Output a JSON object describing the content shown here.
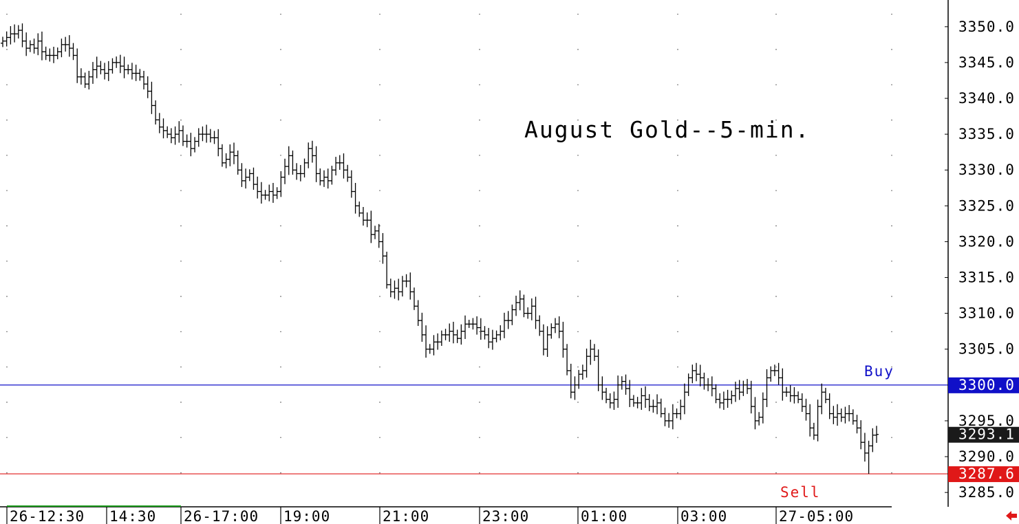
{
  "chart_data": {
    "type": "ohlc",
    "title": "August Gold--5-min.",
    "ylim": [
      3281.6,
      3352.0
    ],
    "y_ticks": [
      "3350.0",
      "3345.0",
      "3340.0",
      "3335.0",
      "3330.0",
      "3325.0",
      "3320.0",
      "3315.0",
      "3310.0",
      "3305.0",
      "3295.0",
      "3290.0",
      "3285.0"
    ],
    "x_tick_labels": [
      "26-12:30",
      "14:30",
      "26-17:00",
      "19:00",
      "21:00",
      "23:00",
      "01:00",
      "03:00",
      "27-05:00"
    ],
    "grid": "dotted vertical",
    "levels": [
      {
        "label": "Buy",
        "badge": "3300.0",
        "value": 3300.0,
        "color": "#1010c8"
      },
      {
        "label": "Sell",
        "badge": "3287.6",
        "value": 3287.6,
        "color": "#e01818"
      }
    ],
    "last_price": {
      "badge": "3293.1",
      "value": 3293.1
    },
    "bars_close": [
      3348,
      3348.5,
      3349,
      3349,
      3349.5,
      3348,
      3347,
      3347.5,
      3347,
      3348,
      3346.5,
      3346,
      3346,
      3346,
      3346.5,
      3347.5,
      3347.5,
      3347,
      3346,
      3343,
      3343,
      3342,
      3343,
      3344,
      3344.5,
      3344,
      3343.5,
      3344,
      3345,
      3345,
      3344.5,
      3344,
      3344,
      3343.5,
      3343.5,
      3343,
      3342,
      3341,
      3339,
      3337,
      3336,
      3335.5,
      3335,
      3334.5,
      3335,
      3335.5,
      3334,
      3334,
      3333,
      3334,
      3335,
      3335,
      3335,
      3334.5,
      3334.5,
      3333,
      3331,
      3331.5,
      3332.5,
      3332,
      3330,
      3328.5,
      3329,
      3329.5,
      3328,
      3327,
      3326.5,
      3326.5,
      3327,
      3326.5,
      3327,
      3329,
      3330.5,
      3332,
      3330,
      3329.5,
      3329.5,
      3331,
      3333,
      3332,
      3329.5,
      3328.5,
      3329,
      3328.5,
      3330,
      3331,
      3331,
      3330,
      3329,
      3327,
      3325,
      3324,
      3323,
      3323,
      3321,
      3321.5,
      3320,
      3318,
      3314,
      3313,
      3313.5,
      3313,
      3314.5,
      3314.5,
      3313,
      3311,
      3309,
      3307,
      3305,
      3305,
      3306,
      3306,
      3307,
      3307,
      3307.5,
      3307,
      3306.5,
      3307.5,
      3308.5,
      3308.5,
      3308.5,
      3308,
      3307.5,
      3307,
      3306,
      3306.5,
      3307,
      3307.5,
      3309,
      3309,
      3310.5,
      3311.5,
      3312,
      3310,
      3310,
      3311,
      3309,
      3307.5,
      3305,
      3307,
      3308,
      3308.5,
      3307.5,
      3305,
      3302,
      3299,
      3300,
      3301.5,
      3302,
      3304,
      3305,
      3304,
      3300,
      3299,
      3298,
      3297.5,
      3298,
      3300,
      3300.5,
      3299.5,
      3298,
      3297.5,
      3297.5,
      3298.5,
      3298,
      3297,
      3297,
      3297.5,
      3296,
      3295,
      3295,
      3296,
      3296,
      3297,
      3299,
      3301,
      3302,
      3301.5,
      3301,
      3300,
      3300,
      3299.5,
      3298,
      3297.5,
      3298,
      3298,
      3298.5,
      3299.5,
      3299,
      3300,
      3299.5,
      3297,
      3295,
      3295.5,
      3298,
      3301,
      3302,
      3302,
      3301,
      3299,
      3299,
      3298.5,
      3298.5,
      3298,
      3297,
      3296,
      3294,
      3293,
      3297,
      3299,
      3298,
      3296,
      3295.5,
      3296,
      3295.5,
      3296,
      3296,
      3295,
      3294,
      3292,
      3290.5,
      3291.5,
      3293,
      3293.1
    ]
  }
}
